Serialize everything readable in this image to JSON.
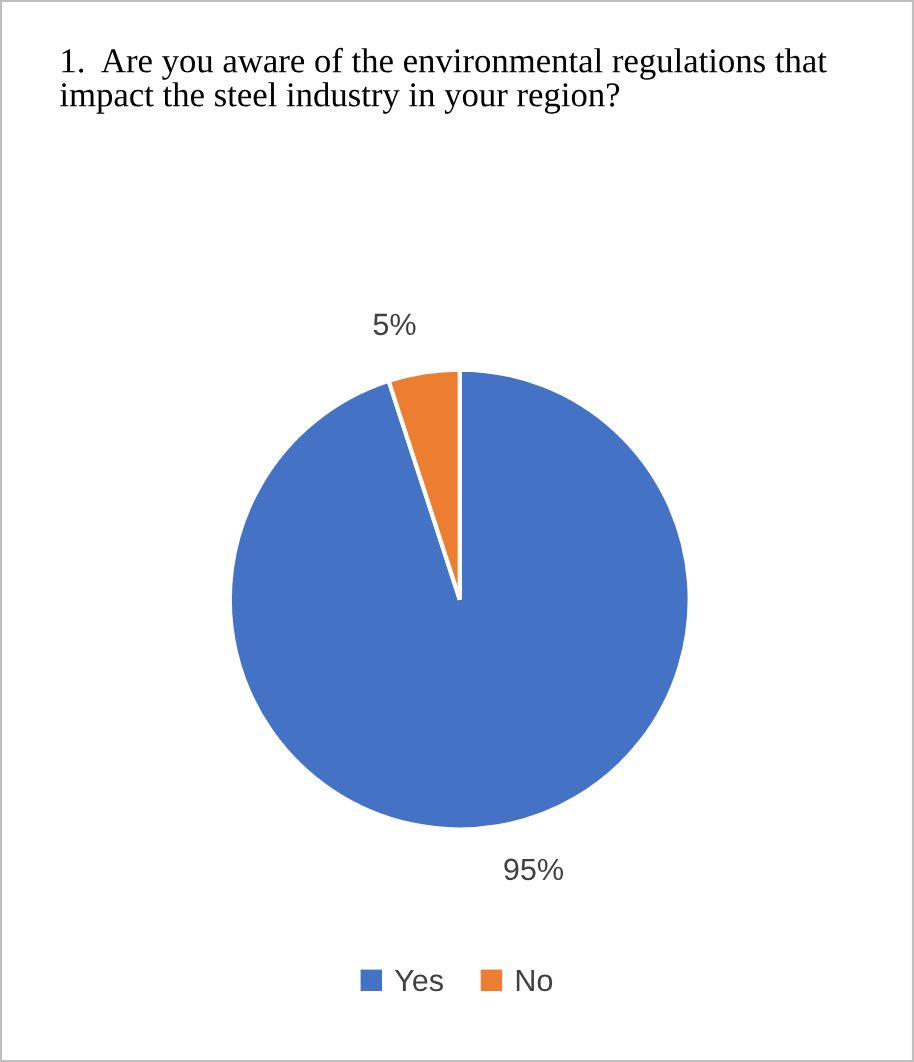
{
  "chart_data": {
    "type": "pie",
    "title": "1.  Are you aware of the environmental regulations that impact the steel industry in your region?",
    "categories": [
      "Yes",
      "No"
    ],
    "values": [
      95,
      5
    ],
    "colors": [
      "#4472c4",
      "#ed7d31"
    ],
    "value_labels": [
      "95%",
      "5%"
    ],
    "legend": "bottom"
  }
}
